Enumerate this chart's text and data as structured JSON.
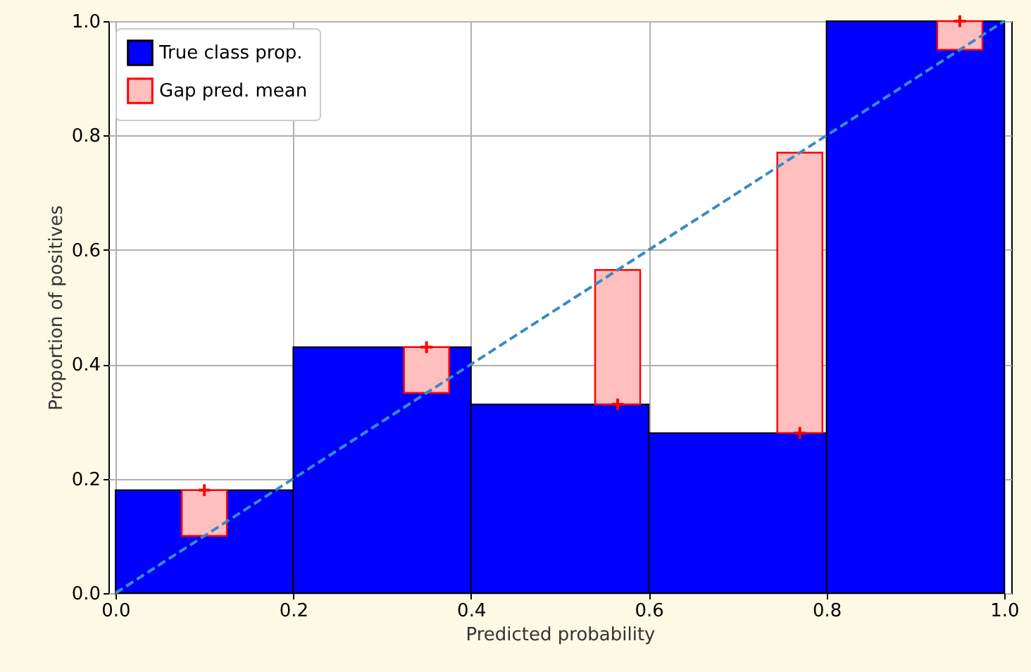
{
  "chart_data": {
    "type": "bar",
    "xlabel": "Predicted probability",
    "ylabel": "Proportion of positives",
    "xlim": [
      0,
      1
    ],
    "ylim": [
      0,
      1
    ],
    "xticks": [
      {
        "value": 0,
        "label": "0.0"
      },
      0.2,
      0.4,
      0.6,
      0.8,
      {
        "value": 1,
        "label": "1.0"
      }
    ],
    "yticks": [
      {
        "value": 0,
        "label": "0.0"
      },
      0.2,
      0.4,
      0.6,
      0.8,
      {
        "value": 1,
        "label": "1.0"
      }
    ],
    "grid": true,
    "legend": "top left",
    "series": [
      {
        "name": "True class prop.",
        "type": "histogram",
        "color": "#0000ff",
        "bins": [
          0,
          0.2,
          0.4,
          0.6,
          0.8,
          1
        ],
        "values": [
          0.18,
          0.43,
          0.33,
          0.28,
          1.0
        ]
      },
      {
        "name": "Gap pred. mean",
        "color": "#ff0000",
        "x": [
          0.1,
          0.35,
          0.565,
          0.77,
          0.95
        ],
        "base": [
          0.1,
          0.35,
          0.33,
          0.28,
          0.95
        ],
        "values": [
          0.08,
          0.08,
          0.235,
          0.49,
          0.05
        ]
      },
      {
        "type": "scatter",
        "color": "#ff0000",
        "marker": "cross",
        "x": [
          0.1,
          0.35,
          0.565,
          0.77,
          0.95
        ],
        "values": [
          0.18,
          0.43,
          0.33,
          0.28,
          1.0
        ]
      },
      {
        "type": "line",
        "color": "#3a8ac4",
        "line_style": "dashed",
        "x": [
          0,
          1
        ],
        "values": [
          0,
          1
        ]
      }
    ]
  }
}
